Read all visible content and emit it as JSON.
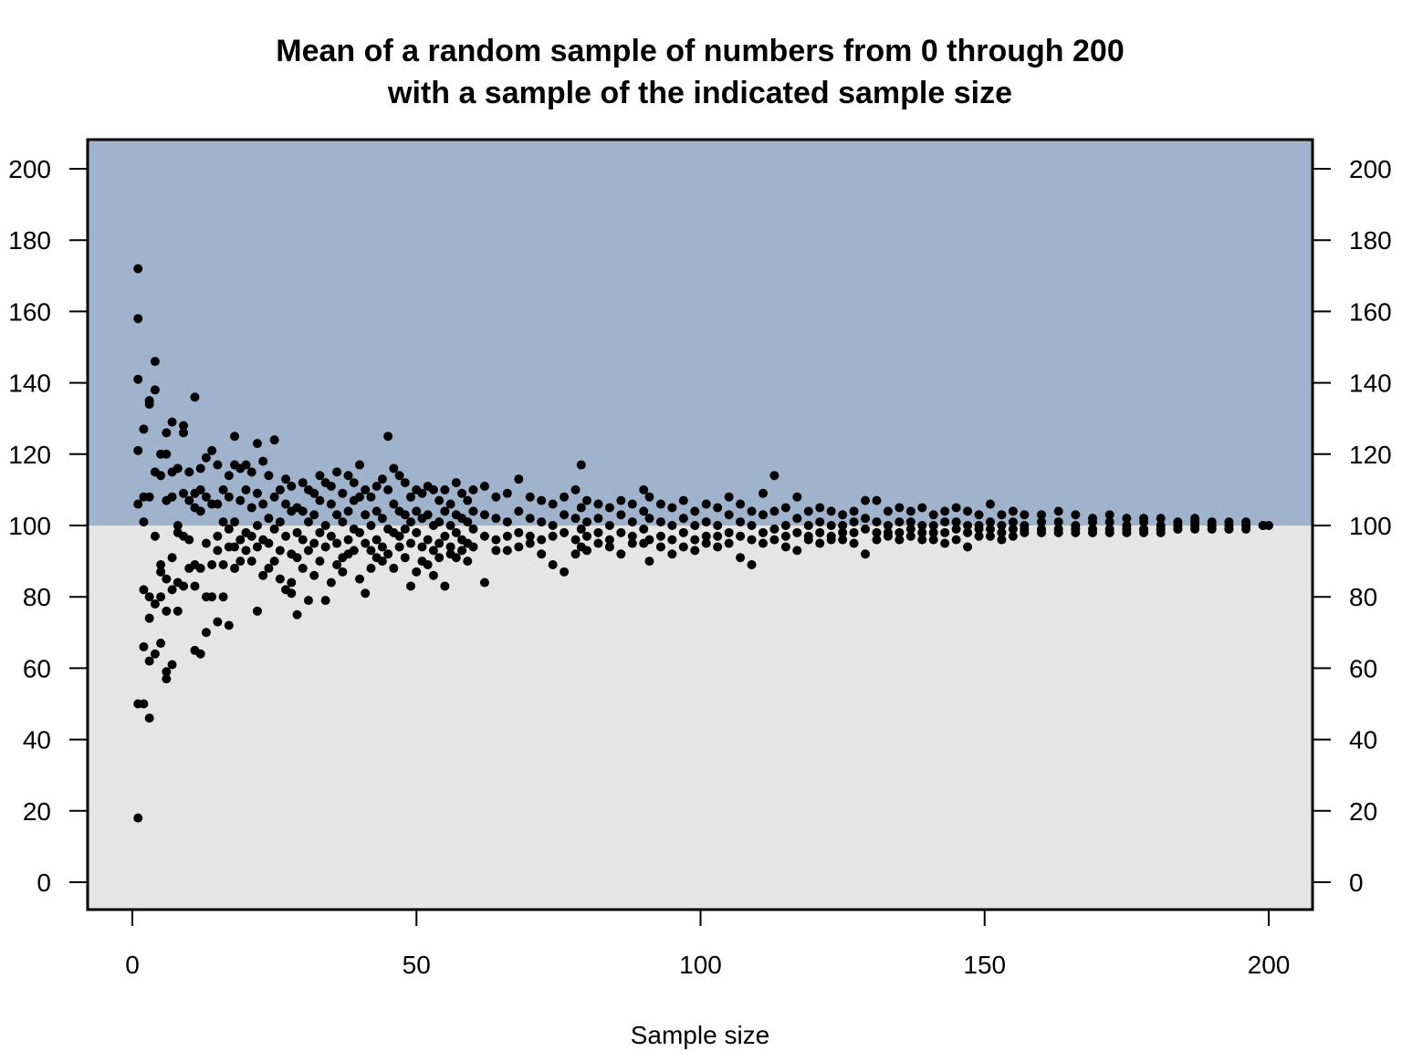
{
  "chart_data": {
    "type": "scatter",
    "title": [
      "Mean of a random sample of numbers from 0 through 200",
      "with a sample of the indicated sample size"
    ],
    "xlabel": "Sample size",
    "ylabel": "",
    "xlim": [
      -8,
      208
    ],
    "ylim": [
      -8,
      208
    ],
    "xticks": [
      0,
      50,
      100,
      150,
      200
    ],
    "yticks": [
      0,
      20,
      40,
      60,
      80,
      100,
      120,
      140,
      160,
      180,
      200
    ],
    "right_axis_ticks": [
      0,
      20,
      40,
      60,
      80,
      100,
      120,
      140,
      160,
      180,
      200
    ],
    "background_split": {
      "value": 100,
      "above_color": "#9fb4cc",
      "below_color": "#e5e5e5"
    },
    "point_color": "#000000",
    "points": [
      {
        "x": 1,
        "y": [
          172,
          158,
          141,
          121,
          106,
          50,
          18
        ]
      },
      {
        "x": 2,
        "y": [
          127,
          108,
          101,
          82,
          66,
          50
        ]
      },
      {
        "x": 3,
        "y": [
          135,
          134,
          108,
          80,
          74,
          62,
          46
        ]
      },
      {
        "x": 4,
        "y": [
          146,
          138,
          115,
          97,
          78,
          64
        ]
      },
      {
        "x": 5,
        "y": [
          120,
          114,
          89,
          87,
          80,
          67
        ]
      },
      {
        "x": 6,
        "y": [
          126,
          120,
          107,
          85,
          76,
          59,
          57
        ]
      },
      {
        "x": 7,
        "y": [
          129,
          115,
          108,
          91,
          82,
          61
        ]
      },
      {
        "x": 8,
        "y": [
          116,
          100,
          98,
          84,
          76
        ]
      },
      {
        "x": 9,
        "y": [
          128,
          126,
          109,
          97,
          83
        ]
      },
      {
        "x": 10,
        "y": [
          115,
          107,
          96,
          88
        ]
      },
      {
        "x": 11,
        "y": [
          136,
          109,
          105,
          89,
          83,
          65
        ]
      },
      {
        "x": 12,
        "y": [
          116,
          110,
          104,
          88,
          64
        ]
      },
      {
        "x": 13,
        "y": [
          119,
          108,
          95,
          80,
          70
        ]
      },
      {
        "x": 14,
        "y": [
          121,
          106,
          89,
          80
        ]
      },
      {
        "x": 15,
        "y": [
          117,
          106,
          97,
          93,
          73
        ]
      },
      {
        "x": 16,
        "y": [
          110,
          101,
          89,
          80
        ]
      },
      {
        "x": 17,
        "y": [
          114,
          108,
          99,
          94,
          72
        ]
      },
      {
        "x": 18,
        "y": [
          125,
          117,
          101,
          94,
          88
        ]
      },
      {
        "x": 19,
        "y": [
          116,
          107,
          96,
          90
        ]
      },
      {
        "x": 20,
        "y": [
          117,
          110,
          98,
          93
        ]
      },
      {
        "x": 21,
        "y": [
          115,
          105,
          97,
          90
        ]
      },
      {
        "x": 22,
        "y": [
          123,
          109,
          100,
          94,
          76
        ]
      },
      {
        "x": 23,
        "y": [
          118,
          106,
          96,
          86
        ]
      },
      {
        "x": 24,
        "y": [
          114,
          102,
          95,
          88
        ]
      },
      {
        "x": 25,
        "y": [
          124,
          108,
          99,
          90
        ]
      },
      {
        "x": 26,
        "y": [
          110,
          101,
          93,
          85
        ]
      },
      {
        "x": 27,
        "y": [
          113,
          106,
          97,
          82
        ]
      },
      {
        "x": 28,
        "y": [
          111,
          104,
          92,
          84,
          81
        ]
      },
      {
        "x": 29,
        "y": [
          105,
          98,
          91,
          75
        ]
      },
      {
        "x": 30,
        "y": [
          112,
          104,
          96,
          88
        ]
      },
      {
        "x": 31,
        "y": [
          110,
          101,
          93,
          79
        ]
      },
      {
        "x": 32,
        "y": [
          109,
          103,
          95,
          86
        ]
      },
      {
        "x": 33,
        "y": [
          114,
          107,
          98,
          90
        ]
      },
      {
        "x": 34,
        "y": [
          112,
          100,
          94,
          79
        ]
      },
      {
        "x": 35,
        "y": [
          111,
          106,
          97,
          84
        ]
      },
      {
        "x": 36,
        "y": [
          115,
          103,
          95,
          89
        ]
      },
      {
        "x": 37,
        "y": [
          109,
          101,
          91,
          87
        ]
      },
      {
        "x": 38,
        "y": [
          114,
          104,
          96,
          92
        ]
      },
      {
        "x": 39,
        "y": [
          112,
          107,
          99,
          93
        ]
      },
      {
        "x": 40,
        "y": [
          117,
          108,
          98,
          85
        ]
      },
      {
        "x": 41,
        "y": [
          110,
          103,
          95,
          81
        ]
      },
      {
        "x": 42,
        "y": [
          108,
          100,
          93,
          88
        ]
      },
      {
        "x": 43,
        "y": [
          111,
          104,
          96,
          91
        ]
      },
      {
        "x": 44,
        "y": [
          113,
          102,
          94,
          90
        ]
      },
      {
        "x": 45,
        "y": [
          125,
          110,
          99,
          92
        ]
      },
      {
        "x": 46,
        "y": [
          116,
          106,
          98,
          88
        ]
      },
      {
        "x": 47,
        "y": [
          114,
          104,
          97,
          94
        ]
      },
      {
        "x": 48,
        "y": [
          112,
          103,
          99,
          91
        ]
      },
      {
        "x": 49,
        "y": [
          108,
          101,
          95,
          83
        ]
      },
      {
        "x": 50,
        "y": [
          110,
          104,
          98,
          87
        ]
      },
      {
        "x": 51,
        "y": [
          109,
          102,
          94,
          90
        ]
      },
      {
        "x": 52,
        "y": [
          111,
          103,
          96,
          89
        ]
      },
      {
        "x": 53,
        "y": [
          110,
          100,
          93,
          86
        ]
      },
      {
        "x": 54,
        "y": [
          107,
          101,
          95,
          91
        ]
      },
      {
        "x": 55,
        "y": [
          110,
          104,
          97,
          83
        ]
      },
      {
        "x": 56,
        "y": [
          106,
          100,
          94,
          92
        ]
      },
      {
        "x": 57,
        "y": [
          112,
          103,
          98,
          91
        ]
      },
      {
        "x": 58,
        "y": [
          109,
          102,
          96,
          93
        ]
      },
      {
        "x": 59,
        "y": [
          107,
          101,
          95,
          90
        ]
      },
      {
        "x": 60,
        "y": [
          110,
          104,
          99,
          94
        ]
      },
      {
        "x": 62,
        "y": [
          111,
          103,
          97,
          84
        ]
      },
      {
        "x": 64,
        "y": [
          108,
          102,
          96,
          93
        ]
      },
      {
        "x": 66,
        "y": [
          109,
          101,
          97,
          93
        ]
      },
      {
        "x": 68,
        "y": [
          113,
          104,
          98,
          94
        ]
      },
      {
        "x": 70,
        "y": [
          108,
          102,
          97,
          95
        ]
      },
      {
        "x": 72,
        "y": [
          107,
          101,
          96,
          92
        ]
      },
      {
        "x": 74,
        "y": [
          106,
          100,
          97,
          89
        ]
      },
      {
        "x": 76,
        "y": [
          108,
          103,
          98,
          87
        ]
      },
      {
        "x": 78,
        "y": [
          110,
          102,
          96,
          92
        ]
      },
      {
        "x": 79,
        "y": [
          117,
          105,
          99,
          94
        ]
      },
      {
        "x": 80,
        "y": [
          107,
          101,
          97,
          93
        ]
      },
      {
        "x": 82,
        "y": [
          106,
          102,
          98,
          95
        ]
      },
      {
        "x": 84,
        "y": [
          105,
          100,
          96,
          94
        ]
      },
      {
        "x": 86,
        "y": [
          107,
          103,
          98,
          92
        ]
      },
      {
        "x": 88,
        "y": [
          106,
          101,
          97,
          95
        ]
      },
      {
        "x": 90,
        "y": [
          110,
          104,
          99,
          95
        ]
      },
      {
        "x": 91,
        "y": [
          108,
          102,
          96,
          90
        ]
      },
      {
        "x": 93,
        "y": [
          106,
          101,
          97,
          94
        ]
      },
      {
        "x": 95,
        "y": [
          105,
          100,
          96,
          92
        ]
      },
      {
        "x": 97,
        "y": [
          107,
          102,
          98,
          94
        ]
      },
      {
        "x": 99,
        "y": [
          104,
          100,
          96,
          93
        ]
      },
      {
        "x": 101,
        "y": [
          106,
          101,
          97,
          95
        ]
      },
      {
        "x": 103,
        "y": [
          105,
          100,
          97,
          94
        ]
      },
      {
        "x": 105,
        "y": [
          108,
          103,
          98,
          95
        ]
      },
      {
        "x": 107,
        "y": [
          106,
          101,
          97,
          91
        ]
      },
      {
        "x": 109,
        "y": [
          104,
          100,
          96,
          89
        ]
      },
      {
        "x": 111,
        "y": [
          109,
          103,
          98,
          95
        ]
      },
      {
        "x": 113,
        "y": [
          114,
          104,
          99,
          96
        ]
      },
      {
        "x": 115,
        "y": [
          105,
          100,
          97,
          94
        ]
      },
      {
        "x": 117,
        "y": [
          108,
          102,
          98,
          93
        ]
      },
      {
        "x": 119,
        "y": [
          104,
          100,
          97,
          96
        ]
      },
      {
        "x": 121,
        "y": [
          105,
          101,
          98,
          95
        ]
      },
      {
        "x": 123,
        "y": [
          104,
          100,
          97,
          96
        ]
      },
      {
        "x": 125,
        "y": [
          103,
          100,
          98,
          96
        ]
      },
      {
        "x": 127,
        "y": [
          104,
          101,
          98,
          95
        ]
      },
      {
        "x": 129,
        "y": [
          107,
          102,
          99,
          92
        ]
      },
      {
        "x": 131,
        "y": [
          107,
          101,
          98,
          96
        ]
      },
      {
        "x": 133,
        "y": [
          104,
          100,
          98,
          97
        ]
      },
      {
        "x": 135,
        "y": [
          105,
          101,
          98,
          96
        ]
      },
      {
        "x": 137,
        "y": [
          104,
          101,
          99,
          97
        ]
      },
      {
        "x": 139,
        "y": [
          105,
          100,
          98,
          96
        ]
      },
      {
        "x": 141,
        "y": [
          103,
          100,
          98,
          96
        ]
      },
      {
        "x": 143,
        "y": [
          104,
          101,
          98,
          95
        ]
      },
      {
        "x": 145,
        "y": [
          105,
          101,
          99,
          96
        ]
      },
      {
        "x": 147,
        "y": [
          104,
          100,
          98,
          94
        ]
      },
      {
        "x": 149,
        "y": [
          103,
          100,
          99,
          97
        ]
      },
      {
        "x": 151,
        "y": [
          106,
          101,
          99,
          97
        ]
      },
      {
        "x": 153,
        "y": [
          103,
          100,
          98,
          96
        ]
      },
      {
        "x": 155,
        "y": [
          104,
          101,
          99,
          97
        ]
      },
      {
        "x": 157,
        "y": [
          103,
          100,
          99,
          98
        ]
      },
      {
        "x": 160,
        "y": [
          103,
          101,
          99,
          98
        ]
      },
      {
        "x": 163,
        "y": [
          104,
          101,
          99,
          98
        ]
      },
      {
        "x": 166,
        "y": [
          103,
          100,
          99,
          98
        ]
      },
      {
        "x": 169,
        "y": [
          102,
          101,
          99,
          98
        ]
      },
      {
        "x": 172,
        "y": [
          103,
          101,
          99,
          98
        ]
      },
      {
        "x": 175,
        "y": [
          102,
          100,
          99,
          98
        ]
      },
      {
        "x": 178,
        "y": [
          102,
          101,
          99,
          98
        ]
      },
      {
        "x": 181,
        "y": [
          102,
          100,
          99,
          98
        ]
      },
      {
        "x": 184,
        "y": [
          101,
          100,
          99,
          99
        ]
      },
      {
        "x": 187,
        "y": [
          102,
          101,
          100,
          99
        ]
      },
      {
        "x": 190,
        "y": [
          101,
          100,
          100,
          99
        ]
      },
      {
        "x": 193,
        "y": [
          101,
          100,
          99,
          99
        ]
      },
      {
        "x": 196,
        "y": [
          101,
          100,
          100,
          99
        ]
      },
      {
        "x": 199,
        "y": [
          100,
          100,
          100,
          100
        ]
      },
      {
        "x": 200,
        "y": [
          100
        ]
      }
    ]
  }
}
